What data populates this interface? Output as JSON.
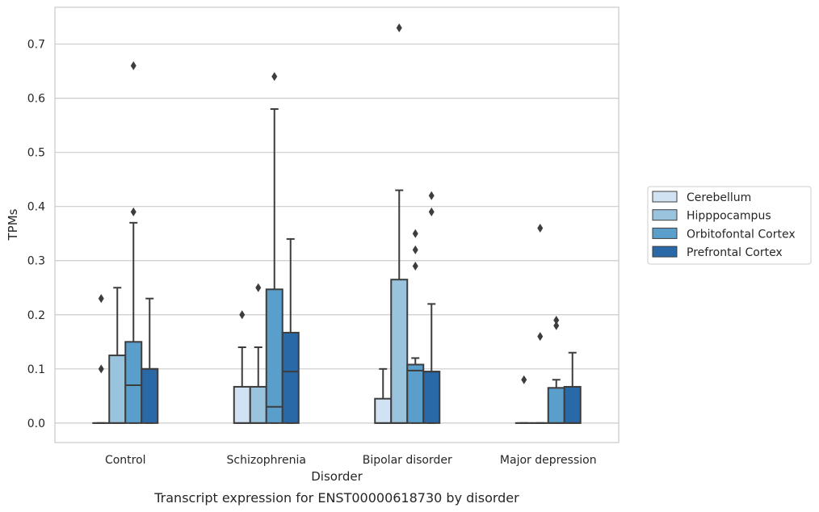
{
  "caption": "Transcript expression for ENST00000618730 by disorder",
  "chart_data": {
    "type": "box",
    "xlabel": "Disorder",
    "ylabel": "TPMs",
    "ylim": [
      -0.036,
      0.768
    ],
    "yticks": [
      "0.0",
      "0.1",
      "0.2",
      "0.3",
      "0.4",
      "0.5",
      "0.6",
      "0.7"
    ],
    "grid": "horizontal",
    "legend_position": "right",
    "categories": [
      "Control",
      "Schizophrenia",
      "Bipolar disorder",
      "Major depression"
    ],
    "series": [
      {
        "name": "Cerebellum",
        "color": "#d1e2f2",
        "boxes": [
          {
            "q1": 0,
            "median": 0,
            "q3": 0,
            "whisker_low": 0,
            "whisker_high": 0,
            "outliers": [
              0.1,
              0.23
            ]
          },
          {
            "q1": 0,
            "median": 0,
            "q3": 0.067,
            "whisker_low": 0,
            "whisker_high": 0.14,
            "outliers": [
              0.2
            ]
          },
          {
            "q1": 0,
            "median": 0,
            "q3": 0.045,
            "whisker_low": 0,
            "whisker_high": 0.1,
            "outliers": []
          },
          {
            "q1": 0,
            "median": 0,
            "q3": 0,
            "whisker_low": 0,
            "whisker_high": 0,
            "outliers": [
              0.08
            ]
          }
        ]
      },
      {
        "name": "Hipppocampus",
        "color": "#9ac4de",
        "boxes": [
          {
            "q1": 0,
            "median": 0,
            "q3": 0.125,
            "whisker_low": 0,
            "whisker_high": 0.25,
            "outliers": []
          },
          {
            "q1": 0,
            "median": 0,
            "q3": 0.067,
            "whisker_low": 0,
            "whisker_high": 0.14,
            "outliers": [
              0.25
            ]
          },
          {
            "q1": 0,
            "median": 0,
            "q3": 0.265,
            "whisker_low": 0,
            "whisker_high": 0.43,
            "outliers": [
              0.73
            ]
          },
          {
            "q1": 0,
            "median": 0,
            "q3": 0,
            "whisker_low": 0,
            "whisker_high": 0,
            "outliers": [
              0.16,
              0.36
            ]
          }
        ]
      },
      {
        "name": "Orbitofontal Cortex",
        "color": "#5a9ecc",
        "boxes": [
          {
            "q1": 0,
            "median": 0.07,
            "q3": 0.15,
            "whisker_low": 0,
            "whisker_high": 0.37,
            "outliers": [
              0.39,
              0.66
            ]
          },
          {
            "q1": 0,
            "median": 0.03,
            "q3": 0.247,
            "whisker_low": 0,
            "whisker_high": 0.58,
            "outliers": [
              0.64
            ]
          },
          {
            "q1": 0,
            "median": 0.097,
            "q3": 0.108,
            "whisker_low": 0,
            "whisker_high": 0.12,
            "outliers": [
              0.29,
              0.32,
              0.35
            ]
          },
          {
            "q1": 0,
            "median": 0,
            "q3": 0.065,
            "whisker_low": 0,
            "whisker_high": 0.08,
            "outliers": [
              0.18,
              0.19
            ]
          }
        ]
      },
      {
        "name": "Prefrontal Cortex",
        "color": "#2a69a8",
        "boxes": [
          {
            "q1": 0,
            "median": 0.1,
            "q3": 0.1,
            "whisker_low": 0,
            "whisker_high": 0.23,
            "outliers": []
          },
          {
            "q1": 0,
            "median": 0.095,
            "q3": 0.167,
            "whisker_low": 0,
            "whisker_high": 0.34,
            "outliers": []
          },
          {
            "q1": 0,
            "median": 0.095,
            "q3": 0.095,
            "whisker_low": 0,
            "whisker_high": 0.22,
            "outliers": [
              0.39,
              0.42
            ]
          },
          {
            "q1": 0,
            "median": 0,
            "q3": 0.067,
            "whisker_low": 0,
            "whisker_high": 0.13,
            "outliers": []
          }
        ]
      }
    ]
  }
}
